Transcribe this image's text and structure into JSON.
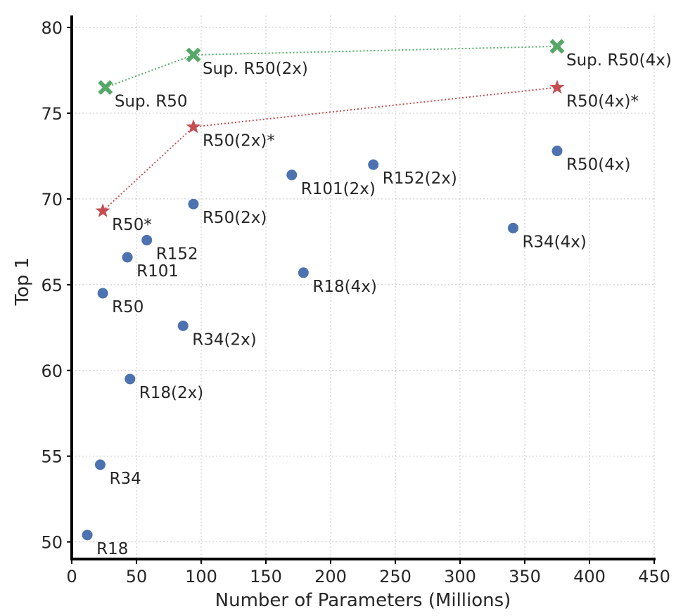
{
  "chart_data": {
    "type": "scatter",
    "title": "",
    "xlabel": "Number of Parameters (Millions)",
    "ylabel": "Top 1",
    "xlim": [
      0,
      450
    ],
    "ylim": [
      49,
      80.7
    ],
    "xticks": [
      0,
      50,
      100,
      150,
      200,
      250,
      300,
      350,
      400,
      450
    ],
    "yticks": [
      50,
      55,
      60,
      65,
      70,
      75,
      80
    ],
    "grid": true,
    "colors": {
      "blue": "#4c72b0",
      "red": "#c44e52",
      "green": "#55a868"
    },
    "series": [
      {
        "marker": "circle",
        "color": "#4c72b0",
        "points": [
          {
            "label": "R18",
            "x": 12,
            "y": 50.4
          },
          {
            "label": "R34",
            "x": 22,
            "y": 54.5
          },
          {
            "label": "R50",
            "x": 24,
            "y": 64.5
          },
          {
            "label": "R101",
            "x": 43,
            "y": 66.6
          },
          {
            "label": "R152",
            "x": 58,
            "y": 67.6
          },
          {
            "label": "R18(2x)",
            "x": 45,
            "y": 59.5
          },
          {
            "label": "R34(2x)",
            "x": 86,
            "y": 62.6
          },
          {
            "label": "R50(2x)",
            "x": 94,
            "y": 69.7
          },
          {
            "label": "R101(2x)",
            "x": 170,
            "y": 71.4
          },
          {
            "label": "R152(2x)",
            "x": 233,
            "y": 72.0
          },
          {
            "label": "R18(4x)",
            "x": 179,
            "y": 65.7
          },
          {
            "label": "R34(4x)",
            "x": 341,
            "y": 68.3
          },
          {
            "label": "R50(4x)",
            "x": 375,
            "y": 72.8
          }
        ]
      },
      {
        "marker": "star",
        "color": "#c44e52",
        "line": "dotted",
        "points": [
          {
            "label": "R50*",
            "x": 24,
            "y": 69.3
          },
          {
            "label": "R50(2x)*",
            "x": 94,
            "y": 74.2
          },
          {
            "label": "R50(4x)*",
            "x": 375,
            "y": 76.5
          }
        ]
      },
      {
        "marker": "x",
        "color": "#55a868",
        "line": "dotted",
        "points": [
          {
            "label": "Sup. R50",
            "x": 26,
            "y": 76.5
          },
          {
            "label": "Sup. R50(2x)",
            "x": 94,
            "y": 78.4
          },
          {
            "label": "Sup. R50(4x)",
            "x": 375,
            "y": 78.9
          }
        ]
      }
    ]
  }
}
